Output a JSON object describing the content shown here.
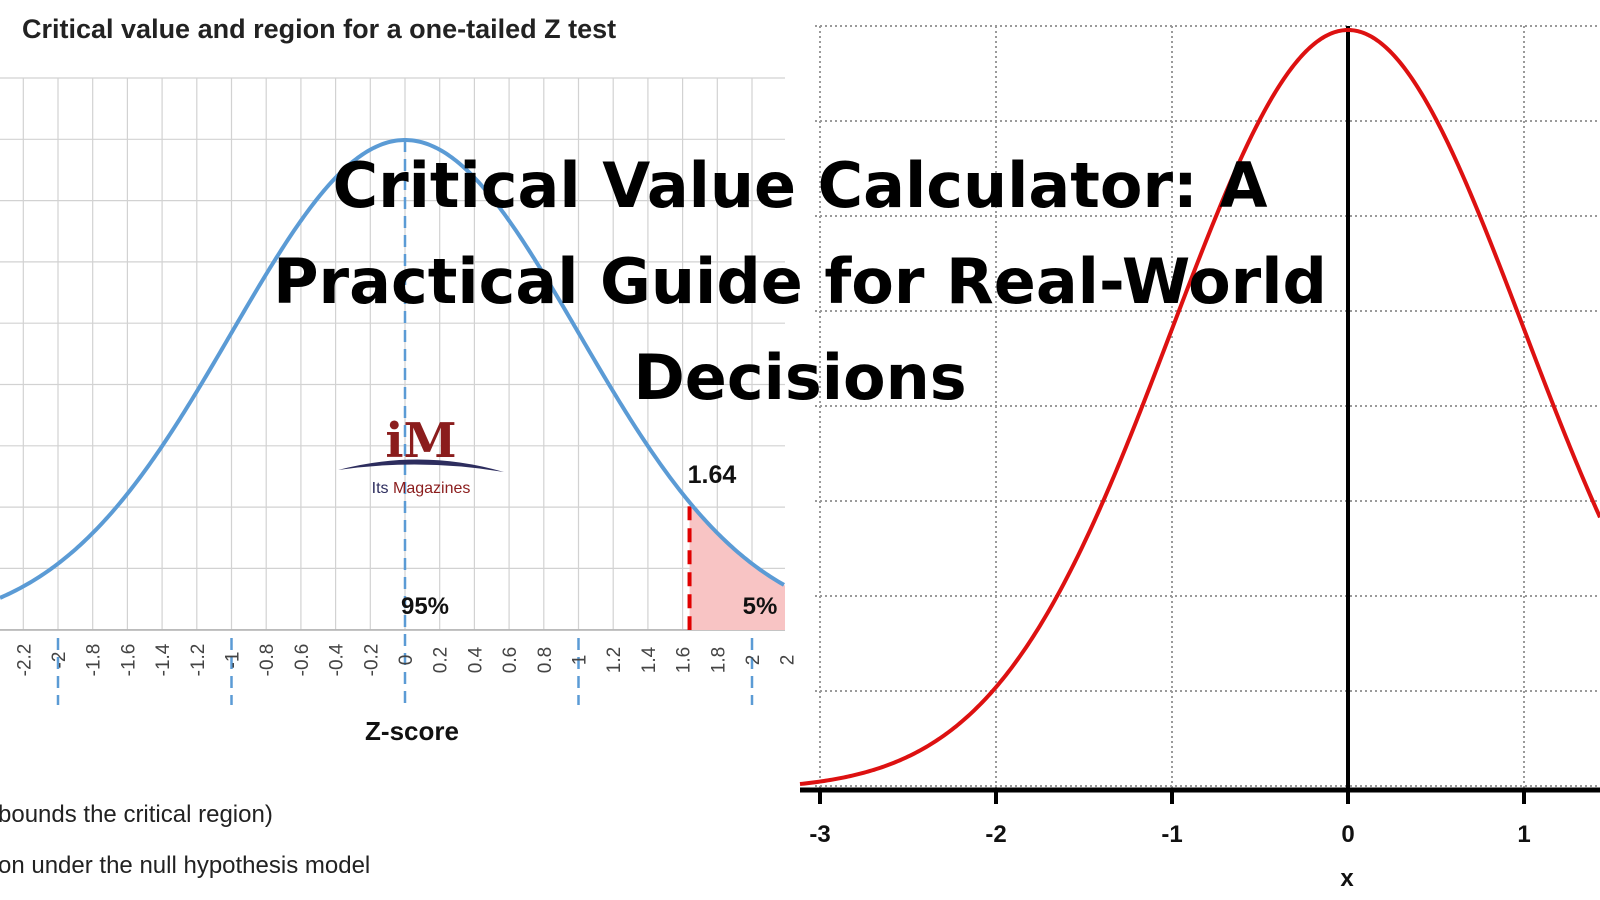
{
  "overlay": {
    "title_line1": "Critical Value Calculator: A",
    "title_line2": "Practical Guide for Real-World",
    "title_line3": "Decisions"
  },
  "logo": {
    "mark": "iM",
    "text_its": "Its",
    "text_magazines": "Magazines"
  },
  "chart_data": [
    {
      "type": "area",
      "title": "Critical value and region for a one-tailed Z test",
      "xlabel": "Z-score",
      "ylabel": "",
      "xlim": [
        -2.35,
        2.1
      ],
      "tick_labels": [
        "-2.2",
        "-2",
        "-1.8",
        "-1.6",
        "-1.4",
        "-1.2",
        "-1",
        "-0.8",
        "-0.6",
        "-0.4",
        "-0.2",
        "0",
        "0.2",
        "0.4",
        "0.6",
        "0.8",
        "1",
        "1.2",
        "1.4",
        "1.6",
        "1.8",
        "2",
        "2"
      ],
      "curve": "standard normal density",
      "critical_value": 1.64,
      "critical_value_label": "1.64",
      "annotations": [
        "95%",
        "5%"
      ],
      "shaded_region": {
        "from": 1.64,
        "to": 2.1,
        "color": "#f8c4c4"
      },
      "dashed_markers": [
        -2,
        -1,
        0,
        1,
        2
      ],
      "curve_color": "#5b9bd5",
      "critical_line_color": "#e00000",
      "grid": true,
      "legend_fragments": [
        "bounds the critical region)",
        "on under the null hypothesis model"
      ]
    },
    {
      "type": "line",
      "title": "",
      "xlabel": "x",
      "ylabel": "",
      "xlim": [
        -3.1,
        1.45
      ],
      "x_ticks": [
        -3,
        -2,
        -1,
        0,
        1
      ],
      "x_tick_labels": [
        "-3",
        "-2",
        "-1",
        "0",
        "1"
      ],
      "curve": "standard normal density",
      "curve_color": "#dd1111",
      "grid": true,
      "grid_style": "dotted"
    }
  ]
}
